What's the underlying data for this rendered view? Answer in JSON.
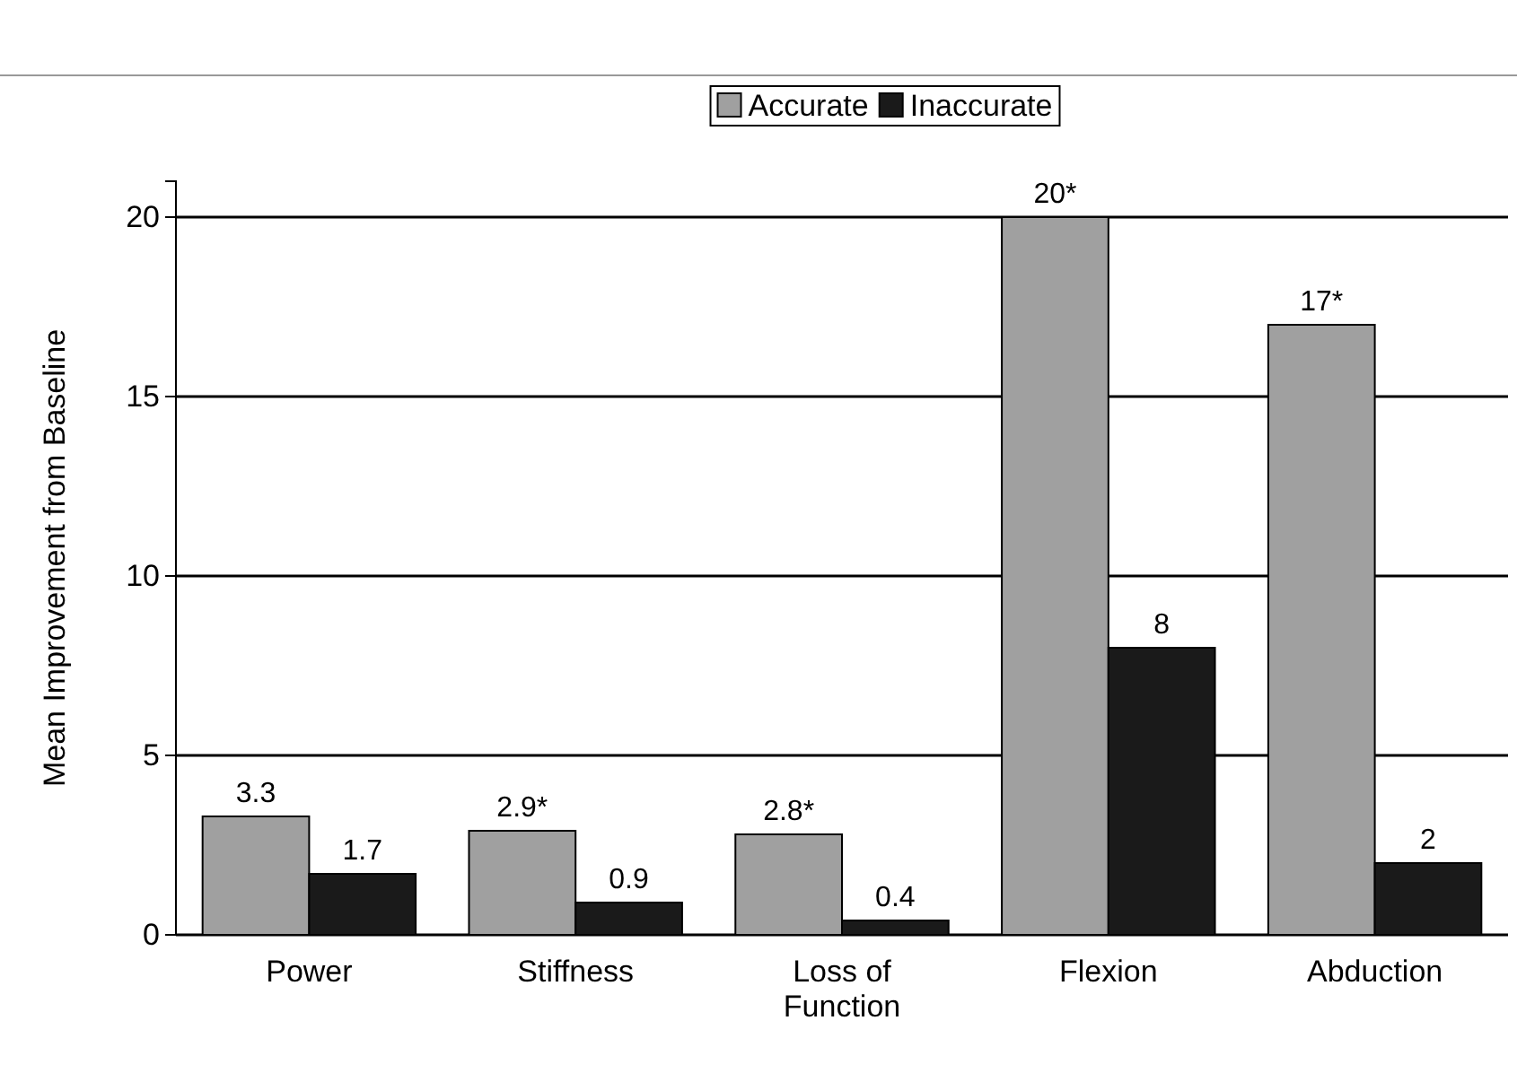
{
  "chart_data": {
    "type": "bar",
    "ylabel": "Mean Improvement from Baseline",
    "categories": [
      "Power",
      "Stiffness",
      "Loss of Function",
      "Flexion",
      "Abduction"
    ],
    "series": [
      {
        "name": "Accurate",
        "color": "#a0a0a0",
        "values": [
          3.3,
          2.9,
          2.8,
          20,
          17
        ],
        "value_labels": [
          "3.3",
          "2.9*",
          "2.8*",
          "20*",
          "17*"
        ]
      },
      {
        "name": "Inaccurate",
        "color": "#1a1a1a",
        "values": [
          1.7,
          0.9,
          0.4,
          8,
          2
        ],
        "value_labels": [
          "1.7",
          "0.9",
          "0.4",
          "8",
          "2"
        ]
      }
    ],
    "ylim": [
      0,
      21
    ],
    "yticks": [
      0,
      5,
      10,
      15,
      20
    ],
    "grid": "y",
    "legend": "top"
  }
}
